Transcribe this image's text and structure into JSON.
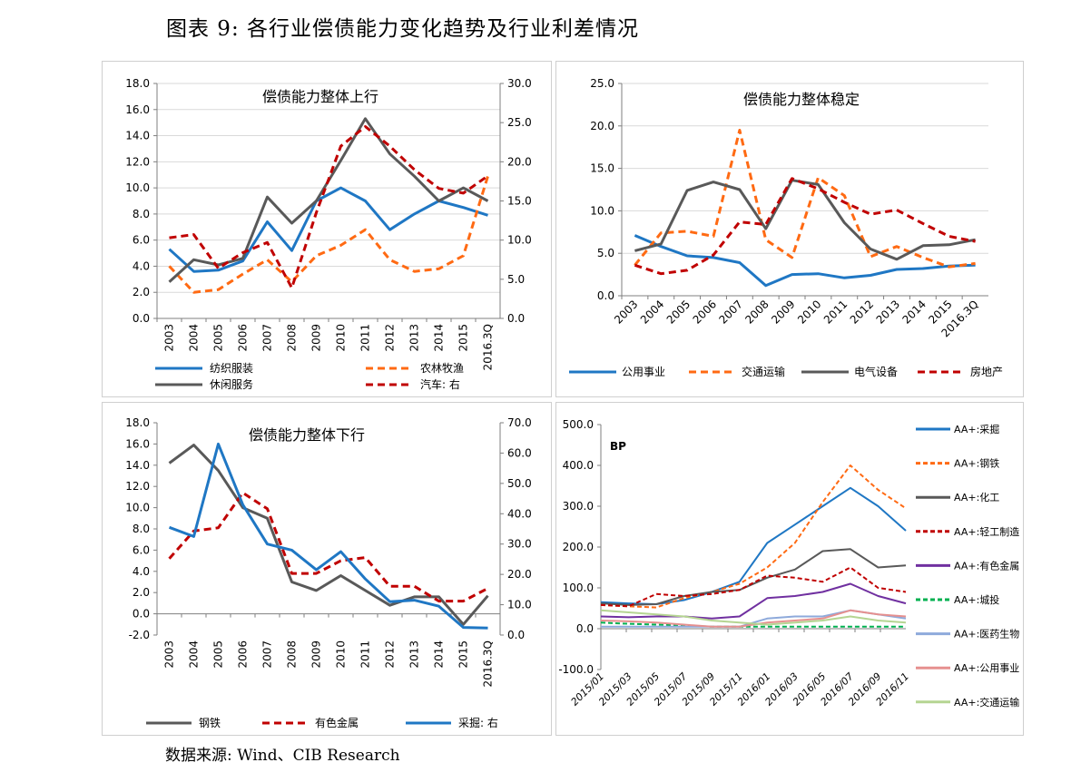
{
  "header": {
    "title": "图表 9: 各行业偿债能力变化趋势及行业利差情况"
  },
  "footer": {
    "source": "数据来源: Wind、CIB Research"
  },
  "chart_data": [
    {
      "type": "line",
      "title": "偿债能力整体上行",
      "categories": [
        "2003",
        "2004",
        "2005",
        "2006",
        "2007",
        "2008",
        "2009",
        "2010",
        "2011",
        "2012",
        "2013",
        "2014",
        "2015",
        "2016.3Q"
      ],
      "ylim_left": [
        0,
        18
      ],
      "yticks_left": [
        "0.0",
        "2.0",
        "4.0",
        "6.0",
        "8.0",
        "10.0",
        "12.0",
        "14.0",
        "16.0",
        "18.0"
      ],
      "ylim_right": [
        0,
        30
      ],
      "yticks_right": [
        "0.0",
        "5.0",
        "10.0",
        "15.0",
        "20.0",
        "25.0",
        "30.0"
      ],
      "grid": true,
      "legend": "bottom",
      "series": [
        {
          "name": "纺织服装",
          "axis": "left",
          "color": "#1f77c4",
          "dash": "solid",
          "values": [
            5.3,
            3.6,
            3.7,
            4.4,
            7.4,
            5.2,
            9.0,
            10.0,
            9.0,
            6.8,
            8.0,
            9.0,
            8.5,
            7.9
          ]
        },
        {
          "name": "农林牧渔",
          "axis": "left",
          "color": "#ff6a13",
          "dash": "dashed",
          "values": [
            4.0,
            2.0,
            2.2,
            3.4,
            4.5,
            2.8,
            4.8,
            5.6,
            6.8,
            4.5,
            3.6,
            3.8,
            4.8,
            10.9
          ]
        },
        {
          "name": "休闲服务",
          "axis": "left",
          "color": "#595959",
          "dash": "solid",
          "values": [
            2.8,
            4.5,
            4.1,
            4.6,
            9.3,
            7.3,
            9.0,
            12.1,
            15.3,
            12.6,
            10.9,
            9.0,
            10.0,
            9.0
          ]
        },
        {
          "name": "汽车: 右",
          "axis": "right",
          "color": "#c00000",
          "dash": "dashed",
          "values": [
            10.3,
            10.7,
            6.4,
            8.4,
            9.7,
            3.9,
            13.5,
            22.0,
            24.5,
            22.0,
            19.0,
            16.6,
            16.0,
            18.2
          ]
        }
      ]
    },
    {
      "type": "line",
      "title": "偿债能力整体稳定",
      "categories": [
        "2003",
        "2004",
        "2005",
        "2006",
        "2007",
        "2008",
        "2009",
        "2010",
        "2011",
        "2012",
        "2013",
        "2014",
        "2015",
        "2016.3Q"
      ],
      "ylim_left": [
        0,
        25
      ],
      "yticks_left": [
        "0.0",
        "5.0",
        "10.0",
        "15.0",
        "20.0",
        "25.0"
      ],
      "grid": true,
      "legend": "bottom",
      "series": [
        {
          "name": "公用事业",
          "axis": "left",
          "color": "#1f77c4",
          "dash": "solid",
          "values": [
            7.1,
            5.8,
            4.7,
            4.5,
            3.9,
            1.2,
            2.5,
            2.6,
            2.1,
            2.4,
            3.1,
            3.2,
            3.5,
            3.6
          ]
        },
        {
          "name": "交通运输",
          "axis": "left",
          "color": "#ff6a13",
          "dash": "dashed",
          "values": [
            3.6,
            7.4,
            7.6,
            7.0,
            19.5,
            6.6,
            4.5,
            13.9,
            11.8,
            4.6,
            5.8,
            4.5,
            3.4,
            3.8
          ]
        },
        {
          "name": "电气设备",
          "axis": "left",
          "color": "#595959",
          "dash": "solid",
          "values": [
            5.3,
            6.1,
            12.4,
            13.4,
            12.5,
            7.9,
            13.6,
            13.1,
            8.6,
            5.5,
            4.3,
            5.9,
            6.0,
            6.6
          ]
        },
        {
          "name": "房地产",
          "axis": "left",
          "color": "#c00000",
          "dash": "dashed",
          "values": [
            3.6,
            2.6,
            3.0,
            4.8,
            8.7,
            8.4,
            13.8,
            12.6,
            11.0,
            9.6,
            10.1,
            8.5,
            7.0,
            6.4
          ]
        }
      ]
    },
    {
      "type": "line",
      "title": "偿债能力整体下行",
      "categories": [
        "2003",
        "2004",
        "2005",
        "2006",
        "2007",
        "2008",
        "2009",
        "2010",
        "2011",
        "2012",
        "2013",
        "2014",
        "2015",
        "2016.3Q"
      ],
      "ylim_left": [
        -2,
        18
      ],
      "yticks_left": [
        "-2.0",
        "0.0",
        "2.0",
        "4.0",
        "6.0",
        "8.0",
        "10.0",
        "12.0",
        "14.0",
        "16.0",
        "18.0"
      ],
      "ylim_right": [
        0,
        70
      ],
      "yticks_right": [
        "0.0",
        "10.0",
        "20.0",
        "30.0",
        "40.0",
        "50.0",
        "60.0",
        "70.0"
      ],
      "grid": false,
      "legend": "bottom",
      "series": [
        {
          "name": "钢铁",
          "axis": "left",
          "color": "#595959",
          "dash": "solid",
          "values": [
            14.2,
            15.9,
            13.5,
            10.0,
            9.0,
            3.0,
            2.2,
            3.6,
            2.2,
            0.8,
            1.6,
            1.6,
            -1.0,
            1.7
          ]
        },
        {
          "name": "有色金属",
          "axis": "left",
          "color": "#c00000",
          "dash": "dashed",
          "values": [
            5.2,
            7.8,
            8.1,
            11.4,
            9.9,
            3.8,
            3.8,
            5.0,
            5.3,
            2.6,
            2.6,
            1.2,
            1.2,
            2.4
          ]
        },
        {
          "name": "采掘: 右",
          "axis": "right",
          "color": "#1f77c4",
          "dash": "solid",
          "values": [
            35.5,
            32.5,
            63.0,
            43.0,
            30.0,
            28.0,
            21.5,
            27.5,
            18.5,
            11.0,
            11.5,
            9.5,
            2.5,
            2.3
          ]
        }
      ]
    },
    {
      "type": "line",
      "title": "",
      "unit_label": "BP",
      "categories": [
        "2015/01",
        "2015/03",
        "2015/05",
        "2015/07",
        "2015/09",
        "2015/11",
        "2016/01",
        "2016/03",
        "2016/05",
        "2016/07",
        "2016/09",
        "2016/11"
      ],
      "ylim_left": [
        -100,
        500
      ],
      "yticks_left": [
        "-100.0",
        "0.0",
        "100.0",
        "200.0",
        "300.0",
        "400.0",
        "500.0"
      ],
      "grid": false,
      "legend": "right",
      "series": [
        {
          "name": "AA+:采掘",
          "color": "#1f77c4",
          "dash": "solid",
          "values": [
            65,
            62,
            60,
            70,
            90,
            115,
            210,
            255,
            300,
            345,
            300,
            240
          ]
        },
        {
          "name": "AA+:钢铁",
          "color": "#ff6a13",
          "dash": "dashed",
          "values": [
            58,
            55,
            52,
            75,
            90,
            110,
            150,
            210,
            310,
            400,
            340,
            295
          ]
        },
        {
          "name": "AA+:化工",
          "color": "#595959",
          "dash": "solid",
          "values": [
            62,
            58,
            60,
            80,
            90,
            95,
            125,
            145,
            190,
            195,
            150,
            155
          ]
        },
        {
          "name": "AA+:轻工制造",
          "color": "#c00000",
          "dash": "dashed",
          "values": [
            58,
            55,
            85,
            80,
            85,
            95,
            130,
            125,
            115,
            150,
            100,
            90
          ]
        },
        {
          "name": "AA+:有色金属",
          "color": "#7030a0",
          "dash": "solid",
          "values": [
            30,
            28,
            30,
            30,
            25,
            30,
            75,
            80,
            90,
            110,
            80,
            62
          ]
        },
        {
          "name": "AA+:城投",
          "color": "#00b050",
          "dash": "dashed",
          "values": [
            15,
            12,
            10,
            8,
            5,
            5,
            5,
            5,
            5,
            5,
            5,
            5
          ]
        },
        {
          "name": "AA+:医药生物",
          "color": "#8eaadb",
          "dash": "solid",
          "values": [
            5,
            5,
            5,
            5,
            5,
            5,
            25,
            30,
            30,
            45,
            35,
            25
          ]
        },
        {
          "name": "AA+:公用事业",
          "color": "#e6908f",
          "dash": "solid",
          "values": [
            20,
            18,
            15,
            10,
            5,
            5,
            15,
            20,
            25,
            45,
            35,
            30
          ]
        },
        {
          "name": "AA+:交通运输",
          "color": "#b5d592",
          "dash": "solid",
          "values": [
            45,
            40,
            35,
            30,
            20,
            15,
            10,
            15,
            20,
            30,
            20,
            15
          ]
        }
      ]
    }
  ]
}
